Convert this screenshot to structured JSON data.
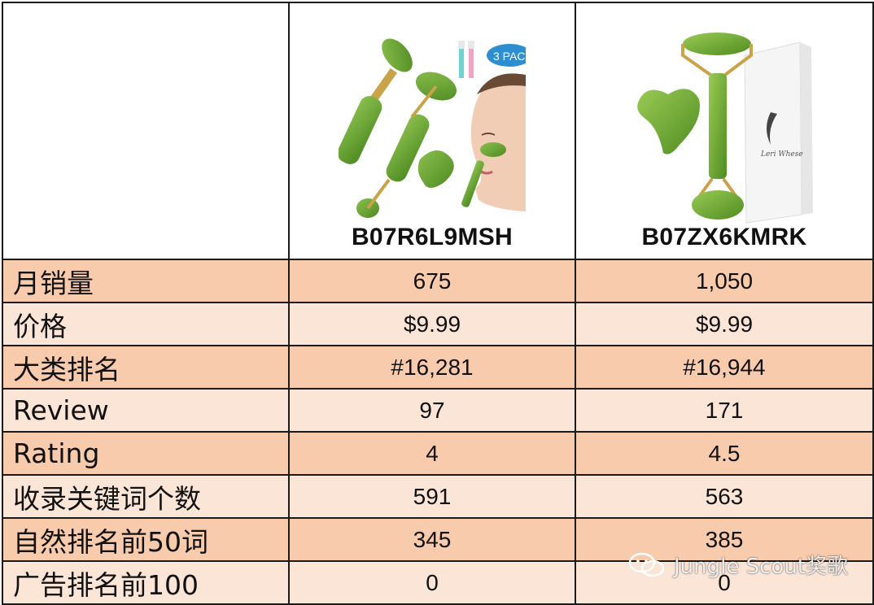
{
  "products": [
    {
      "asin": "B07R6L9MSH",
      "image": "jade-roller-gua-sha-set-with-brushes-and-model-image"
    },
    {
      "asin": "B07ZX6KMRK",
      "image": "jade-roller-gua-sha-with-gift-box-image"
    }
  ],
  "badge_text": "3 PAC",
  "box_brand": "Leri Whese",
  "rows": [
    {
      "label": "月销量",
      "values": [
        "675",
        "1,050"
      ]
    },
    {
      "label": "价格",
      "values": [
        "$9.99",
        "$9.99"
      ]
    },
    {
      "label": "大类排名",
      "values": [
        "#16,281",
        "#16,944"
      ]
    },
    {
      "label": "Review",
      "values": [
        "97",
        "171"
      ]
    },
    {
      "label": "Rating",
      "values": [
        "4",
        "4.5"
      ]
    },
    {
      "label": "收录关键词个数",
      "values": [
        "591",
        "563"
      ]
    },
    {
      "label": "自然排名前50词",
      "values": [
        "345",
        "385"
      ]
    },
    {
      "label": "广告排名前100",
      "values": [
        "0",
        "0"
      ]
    }
  ],
  "watermark": {
    "text": "Jungle Scout奖歌",
    "icon": "wechat-icon"
  },
  "colors": {
    "row_odd": "#f8cbad",
    "row_even": "#fbe5d6",
    "jade": "#5f9a2c",
    "border": "#1a1a1a"
  }
}
